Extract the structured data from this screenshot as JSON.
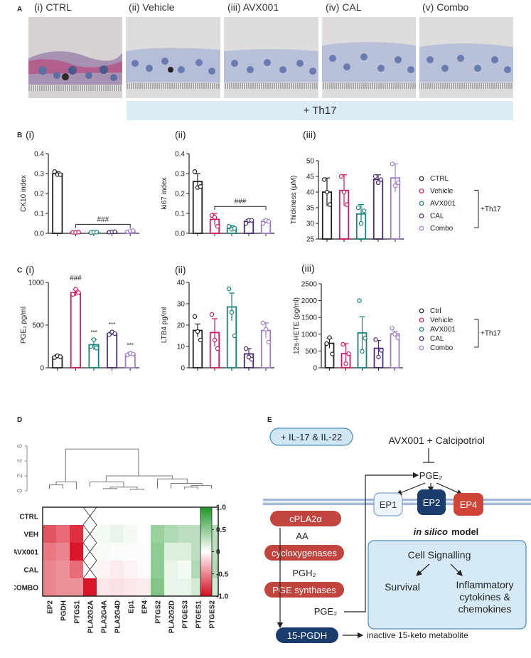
{
  "panel_letters": {
    "A": "A",
    "B": "B",
    "C": "C",
    "D": "D",
    "E": "E"
  },
  "panelA": {
    "images": [
      {
        "label": "(i) CTRL"
      },
      {
        "label": "(ii) Vehicle"
      },
      {
        "label": "(iii) AVX001"
      },
      {
        "label": "(iv) CAL"
      },
      {
        "label": "(v) Combo"
      }
    ],
    "band_label": "+ Th17"
  },
  "row_labels": {
    "B_i": "(i)",
    "B_ii": "(ii)",
    "B_iii": "(iii)",
    "C_i": "(i)",
    "C_ii": "(ii)",
    "C_iii": "(iii)"
  },
  "colors": {
    "CTRL": "#222222",
    "Vehicle": "#cc1a66",
    "AVX001": "#16827d",
    "CAL": "#4a2a6e",
    "Combo": "#a07bc7"
  },
  "chart_data": [
    {
      "id": "B_i",
      "type": "bar",
      "categories": [
        "CTRL",
        "Vehicle",
        "AVX001",
        "CAL",
        "Combo"
      ],
      "values": [
        0.3,
        0.005,
        0.005,
        0.007,
        0.01
      ],
      "errors": [
        0.01,
        0.002,
        0.002,
        0.002,
        0.004
      ],
      "points": [
        [
          0.31,
          0.295,
          0.295
        ],
        [
          0.005,
          0.004,
          0.006
        ],
        [
          0.004,
          0.005,
          0.006
        ],
        [
          0.006,
          0.007,
          0.008
        ],
        [
          0.007,
          0.012,
          0.013
        ]
      ],
      "ylabel": "CK10 index",
      "ylim": [
        0,
        0.4
      ],
      "yticks": [
        "0.0",
        "0.1",
        "0.2",
        "0.3",
        "0.4"
      ],
      "tickvals": [
        0,
        0.1,
        0.2,
        0.3,
        0.4
      ],
      "annotations": [
        {
          "text": "###",
          "from": 1,
          "to": 4,
          "y": 0.045
        }
      ]
    },
    {
      "id": "B_ii",
      "type": "bar",
      "categories": [
        "CTRL",
        "Vehicle",
        "AVX001",
        "CAL",
        "Combo"
      ],
      "values": [
        0.26,
        0.07,
        0.025,
        0.06,
        0.06
      ],
      "errors": [
        0.04,
        0.03,
        0.015,
        0.01,
        0.01
      ],
      "points": [
        [
          0.31,
          0.23,
          0.235
        ],
        [
          0.09,
          0.08,
          0.035
        ],
        [
          0.035,
          0.02,
          0.025
        ],
        [
          0.05,
          0.065,
          0.065
        ],
        [
          0.05,
          0.065,
          0.06
        ]
      ],
      "ylabel": "ki67 index",
      "ylim": [
        0,
        0.4
      ],
      "yticks": [
        "0.0",
        "0.1",
        "0.2",
        "0.3",
        "0.4"
      ],
      "tickvals": [
        0,
        0.1,
        0.2,
        0.3,
        0.4
      ],
      "annotations": [
        {
          "text": "###",
          "from": 1,
          "to": 4,
          "y": 0.135
        }
      ]
    },
    {
      "id": "B_iii",
      "type": "bar",
      "categories": [
        "CTRL",
        "Vehicle",
        "AVX001",
        "CAL",
        "Combo"
      ],
      "values": [
        40,
        40.5,
        33,
        44,
        44.5
      ],
      "errors": [
        4.5,
        5,
        3,
        1.5,
        4.5
      ],
      "points": [
        [
          44,
          40,
          36
        ],
        [
          45,
          40,
          36
        ],
        [
          35,
          30,
          34
        ],
        [
          45,
          43,
          44
        ],
        [
          49,
          42,
          43
        ]
      ],
      "ylabel": "Thickness (μM)",
      "ylim": [
        25,
        50
      ],
      "yticks": [
        "25",
        "30",
        "35",
        "40",
        "45",
        "50"
      ],
      "tickvals": [
        25,
        30,
        35,
        40,
        45,
        50
      ],
      "annotations": []
    },
    {
      "id": "C_i",
      "type": "bar",
      "categories": [
        "CTRL",
        "Vehicle",
        "AVX001",
        "CAL",
        "Combo"
      ],
      "values": [
        130,
        880,
        270,
        400,
        160
      ],
      "errors": [
        20,
        40,
        60,
        20,
        20
      ],
      "points": [
        [
          120,
          140,
          130
        ],
        [
          860,
          920,
          880
        ],
        [
          250,
          330,
          230
        ],
        [
          390,
          420,
          400
        ],
        [
          150,
          170,
          160
        ]
      ],
      "ylabel": "PGE₂ pg/ml",
      "ylim": [
        0,
        1000
      ],
      "yticks": [
        "0",
        "500",
        "1000"
      ],
      "tickvals": [
        0,
        500,
        1000
      ],
      "annotations": [
        {
          "text": "###",
          "bar": 1,
          "y": 1000
        },
        {
          "text": "***",
          "bar": 2,
          "y": 365
        },
        {
          "text": "***",
          "bar": 3,
          "y": 460
        },
        {
          "text": "***",
          "bar": 4,
          "y": 215
        }
      ]
    },
    {
      "id": "C_ii",
      "type": "bar",
      "categories": [
        "CTRL",
        "Vehicle",
        "AVX001",
        "CAL",
        "Combo"
      ],
      "values": [
        17.5,
        16.5,
        28.5,
        6.5,
        17.5
      ],
      "errors": [
        3,
        6.5,
        6.5,
        2.5,
        3.5
      ],
      "points": [
        [
          24,
          17,
          13
        ],
        [
          25,
          13,
          9
        ],
        [
          37,
          26,
          15
        ],
        [
          9,
          5,
          4
        ],
        [
          21,
          18,
          12
        ]
      ],
      "ylabel": "LTB4 pg/ml",
      "ylim": [
        0,
        40
      ],
      "yticks": [
        "0",
        "10",
        "20",
        "30",
        "40"
      ],
      "tickvals": [
        0,
        10,
        20,
        30,
        40
      ],
      "annotations": []
    },
    {
      "id": "C_iii",
      "type": "bar",
      "categories": [
        "Ctrl",
        "Vehicle",
        "AVX001",
        "CAL",
        "Combo"
      ],
      "values": [
        730,
        420,
        1040,
        580,
        1010
      ],
      "errors": [
        150,
        300,
        480,
        230,
        80
      ],
      "points": [
        [
          720,
          900,
          410
        ],
        [
          700,
          120,
          420
        ],
        [
          2000,
          490,
          880
        ],
        [
          840,
          320,
          520
        ],
        [
          1180,
          1000,
          900
        ]
      ],
      "ylabel": "12s-HETE (pg/ml)",
      "ylim": [
        0,
        2500
      ],
      "yticks": [
        "0",
        "500",
        "1000",
        "1500",
        "2000",
        "2500"
      ],
      "tickvals": [
        0,
        500,
        1000,
        1500,
        2000,
        2500
      ],
      "annotations": []
    },
    {
      "id": "D",
      "type": "heatmap",
      "rows": [
        "CTRL",
        "VEH",
        "AVX001",
        "CAL",
        "COMBO"
      ],
      "cols": [
        "EP2",
        "PGDH",
        "PTGS1",
        "PLA2G2A",
        "PLA2G4A",
        "PLA2G4D",
        "Ep1",
        "EP4",
        "PTGS2",
        "PLA2G2D",
        "PTGES3",
        "PTGES1",
        "PTGES2"
      ],
      "values": [
        [
          0,
          0,
          0,
          null,
          0,
          0,
          0,
          0,
          0,
          0,
          0,
          0,
          0
        ],
        [
          -0.7,
          -0.6,
          -0.85,
          null,
          0.05,
          0.1,
          0.05,
          0,
          0.45,
          0.35,
          0.3,
          0.3,
          0.3
        ],
        [
          -0.55,
          -0.5,
          -0.95,
          null,
          0.03,
          0.02,
          0.02,
          0.02,
          0.5,
          0.15,
          0.15,
          0.3,
          0.3
        ],
        [
          -0.5,
          -0.45,
          -0.6,
          null,
          -0.05,
          -0.08,
          -0.05,
          -0.02,
          0.5,
          0.1,
          0.05,
          0.35,
          0.35
        ],
        [
          -0.5,
          -0.45,
          -0.45,
          -0.95,
          -0.1,
          -0.12,
          -0.1,
          -0.08,
          0.55,
          0.1,
          0.1,
          0.2,
          0.2
        ]
      ],
      "colorbar": {
        "min": -1,
        "max": 1,
        "ticks": [
          "1.0",
          "0.5",
          "0",
          "-0.5",
          "-1.0"
        ],
        "tickvals": [
          1,
          0.5,
          0,
          -0.5,
          -1
        ]
      },
      "dendro_ticks": [
        "0",
        "2",
        "4",
        "6"
      ],
      "dendro_tickvals": [
        0,
        2,
        4,
        6
      ]
    }
  ],
  "legendB": {
    "items": [
      "CTRL",
      "Vehicle",
      "AVX001",
      "CAL",
      "Combo"
    ],
    "bracket_label": "+Th17"
  },
  "legendC": {
    "items": [
      "Ctrl",
      "Vehicle",
      "AVX001",
      "CAL",
      "Combo"
    ],
    "bracket_label": "+Th17"
  },
  "panelE": {
    "title": "AVX001 + Calcipotriol",
    "pge2_top": "PGE₂",
    "il_box": "+ IL-17 & IL-22",
    "ep1": "EP1",
    "ep2": "EP2",
    "ep4": "EP4",
    "cpla2": "cPLA2α",
    "aa": "AA",
    "cyclo": "cycloxygenases",
    "pgh2": "PGH₂",
    "pges": "PGE synthases",
    "pge2_bottom": "PGE₂",
    "pgdh": "15-PGDH",
    "inactive": "inactive 15-keto metabolite",
    "in_silico": "in silico",
    "model": "model",
    "cell_signalling": "Cell Signalling",
    "survival": "Survival",
    "inflam1": "Inflammatory",
    "inflam2": "cytokines &",
    "inflam3": "chemokines"
  }
}
